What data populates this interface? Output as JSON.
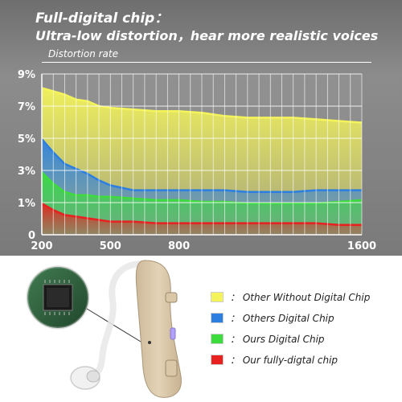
{
  "header": {
    "title": "Full-digital chip：",
    "subtitle": "Ultra-low distortion，hear more realistic voices"
  },
  "chart_data": {
    "type": "area",
    "title": "Full-digital chip：",
    "subtitle": "Ultra-low distortion，hear more realistic voices",
    "ylabel": "Distortion rate",
    "xlabel": "",
    "x": [
      200,
      250,
      300,
      350,
      400,
      450,
      500,
      600,
      700,
      800,
      900,
      1000,
      1100,
      1200,
      1300,
      1400,
      1500,
      1600
    ],
    "xticks": [
      200,
      500,
      800,
      1600
    ],
    "ylim": [
      0,
      9
    ],
    "yticks": [
      {
        "value": 0,
        "label": "0"
      },
      {
        "value": 1.95,
        "label": "1%"
      },
      {
        "value": 3.9,
        "label": "3%"
      },
      {
        "value": 5.85,
        "label": "5%"
      },
      {
        "value": 7.8,
        "label": "7%"
      },
      {
        "value": 9.75,
        "label": "9%"
      }
    ],
    "grid": true,
    "series": [
      {
        "name": "Other Without Digital Chip",
        "color": "#f4f45a",
        "values": [
          8.9,
          8.7,
          8.5,
          8.2,
          8.1,
          7.8,
          7.7,
          7.6,
          7.5,
          7.5,
          7.4,
          7.2,
          7.1,
          7.1,
          7.1,
          7.0,
          6.9,
          6.8
        ]
      },
      {
        "name": "Others Digital Chip",
        "color": "#2c7fe0",
        "values": [
          5.8,
          5.0,
          4.3,
          4.0,
          3.7,
          3.3,
          3.0,
          2.7,
          2.7,
          2.7,
          2.7,
          2.7,
          2.6,
          2.6,
          2.6,
          2.7,
          2.7,
          2.7
        ]
      },
      {
        "name": "Ours Digital Chip",
        "color": "#3ddc3d",
        "values": [
          3.8,
          3.1,
          2.6,
          2.4,
          2.4,
          2.3,
          2.3,
          2.2,
          2.1,
          2.1,
          2.0,
          2.0,
          1.9,
          1.9,
          1.9,
          1.9,
          2.0,
          2.1
        ]
      },
      {
        "name": "Our fully-digtal chip",
        "color": "#e82020",
        "values": [
          1.9,
          1.5,
          1.2,
          1.1,
          1.0,
          0.9,
          0.8,
          0.8,
          0.7,
          0.7,
          0.7,
          0.7,
          0.7,
          0.7,
          0.7,
          0.7,
          0.6,
          0.6
        ]
      }
    ],
    "legend_placement": "bottom-right"
  },
  "colors": {
    "background_top": "#7a7a7a",
    "grid": "#ffffff",
    "axis": "#ffffff"
  },
  "images": {
    "hearing_aid": "hearing-aid-icon",
    "chip": "chip-icon"
  }
}
